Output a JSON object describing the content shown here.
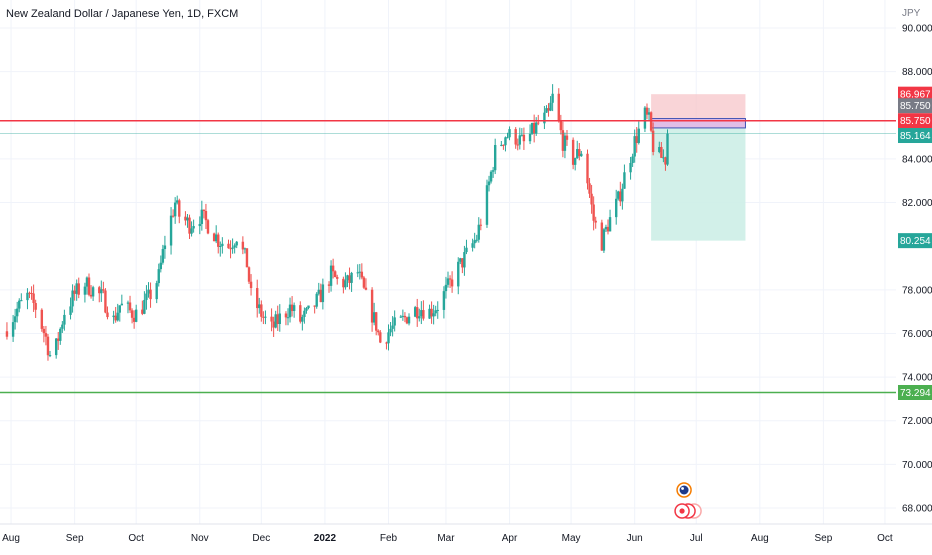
{
  "header": {
    "title": "New Zealand Dollar / Japanese Yen, 1D, FXCM",
    "currency": "JPY"
  },
  "colors": {
    "up": "#26a69a",
    "down": "#ef5350",
    "resistance": "#f23645",
    "support": "#4caf50",
    "current": "#26a69a",
    "stop_zone": "#f7c5ca",
    "target_zone": "#cdeee7",
    "entry_box": "#e1bee7",
    "label_dark": "#787b86"
  },
  "chart_data": {
    "type": "candlestick",
    "ylim": [
      67.5,
      90.5
    ],
    "yticks": [
      "90.000",
      "88.000",
      "84.000",
      "82.000",
      "78.000",
      "76.000",
      "74.000",
      "72.000",
      "70.000",
      "68.000"
    ],
    "ytick_values": [
      90,
      88,
      84,
      82,
      78,
      76,
      74,
      72,
      70,
      68
    ],
    "xticks": [
      {
        "label": "Aug",
        "date": "2021-08-01"
      },
      {
        "label": "Sep",
        "date": "2021-09-01"
      },
      {
        "label": "Oct",
        "date": "2021-10-01"
      },
      {
        "label": "Nov",
        "date": "2021-11-01"
      },
      {
        "label": "Dec",
        "date": "2021-12-01"
      },
      {
        "label": "2022",
        "date": "2022-01-01"
      },
      {
        "label": "Feb",
        "date": "2022-02-01"
      },
      {
        "label": "Mar",
        "date": "2022-03-01"
      },
      {
        "label": "Apr",
        "date": "2022-04-01"
      },
      {
        "label": "May",
        "date": "2022-05-01"
      },
      {
        "label": "Jun",
        "date": "2022-06-01"
      },
      {
        "label": "Jul",
        "date": "2022-07-01"
      },
      {
        "label": "Aug",
        "date": "2022-08-01"
      },
      {
        "label": "Sep",
        "date": "2022-09-01"
      },
      {
        "label": "Oct",
        "date": "2022-10-01"
      }
    ],
    "x_range": [
      "2021-07-31",
      "2022-10-02"
    ],
    "close_path": [
      [
        "2021-07-30",
        76.3
      ],
      [
        "2021-08-04",
        77.1
      ],
      [
        "2021-08-09",
        77.7
      ],
      [
        "2021-08-13",
        77.2
      ],
      [
        "2021-08-18",
        75.8
      ],
      [
        "2021-08-20",
        75.0
      ],
      [
        "2021-08-23",
        75.4
      ],
      [
        "2021-08-27",
        77.0
      ],
      [
        "2021-09-01",
        77.8
      ],
      [
        "2021-09-06",
        78.3
      ],
      [
        "2021-09-10",
        78.0
      ],
      [
        "2021-09-15",
        77.6
      ],
      [
        "2021-09-20",
        76.6
      ],
      [
        "2021-09-23",
        77.3
      ],
      [
        "2021-09-28",
        77.0
      ],
      [
        "2021-10-01",
        76.9
      ],
      [
        "2021-10-07",
        77.6
      ],
      [
        "2021-10-12",
        78.6
      ],
      [
        "2021-10-15",
        80.2
      ],
      [
        "2021-10-20",
        82.0
      ],
      [
        "2021-10-22",
        81.4
      ],
      [
        "2021-10-27",
        81.0
      ],
      [
        "2021-11-01",
        81.4
      ],
      [
        "2021-11-05",
        81.0
      ],
      [
        "2021-11-10",
        80.3
      ],
      [
        "2021-11-15",
        80.0
      ],
      [
        "2021-11-19",
        80.5
      ],
      [
        "2021-11-24",
        79.2
      ],
      [
        "2021-11-26",
        77.7
      ],
      [
        "2021-12-01",
        76.9
      ],
      [
        "2021-12-06",
        76.2
      ],
      [
        "2021-12-10",
        76.7
      ],
      [
        "2021-12-15",
        77.2
      ],
      [
        "2021-12-20",
        76.6
      ],
      [
        "2021-12-24",
        76.9
      ],
      [
        "2021-12-29",
        77.6
      ],
      [
        "2022-01-04",
        78.7
      ],
      [
        "2022-01-07",
        78.4
      ],
      [
        "2022-01-12",
        78.3
      ],
      [
        "2022-01-17",
        78.8
      ],
      [
        "2022-01-21",
        77.6
      ],
      [
        "2022-01-26",
        76.4
      ],
      [
        "2022-01-28",
        75.6
      ],
      [
        "2022-02-02",
        76.2
      ],
      [
        "2022-02-07",
        76.5
      ],
      [
        "2022-02-11",
        76.9
      ],
      [
        "2022-02-16",
        77.2
      ],
      [
        "2022-02-21",
        77.0
      ],
      [
        "2022-02-25",
        77.3
      ],
      [
        "2022-03-02",
        78.1
      ],
      [
        "2022-03-07",
        79.0
      ],
      [
        "2022-03-11",
        79.6
      ],
      [
        "2022-03-16",
        80.4
      ],
      [
        "2022-03-21",
        82.4
      ],
      [
        "2022-03-25",
        84.3
      ],
      [
        "2022-03-30",
        85.1
      ],
      [
        "2022-04-04",
        85.0
      ],
      [
        "2022-04-08",
        84.7
      ],
      [
        "2022-04-12",
        85.2
      ],
      [
        "2022-04-15",
        85.6
      ],
      [
        "2022-04-20",
        86.0
      ],
      [
        "2022-04-22",
        86.8
      ],
      [
        "2022-04-27",
        84.8
      ],
      [
        "2022-05-02",
        84.0
      ],
      [
        "2022-05-06",
        84.4
      ],
      [
        "2022-05-09",
        83.0
      ],
      [
        "2022-05-12",
        81.2
      ],
      [
        "2022-05-16",
        80.2
      ],
      [
        "2022-05-19",
        81.0
      ],
      [
        "2022-05-24",
        82.1
      ],
      [
        "2022-05-27",
        83.2
      ],
      [
        "2022-06-01",
        84.8
      ],
      [
        "2022-06-06",
        86.0
      ],
      [
        "2022-06-08",
        85.7
      ],
      [
        "2022-06-10",
        84.6
      ],
      [
        "2022-06-13",
        84.1
      ],
      [
        "2022-06-16",
        84.0
      ],
      [
        "2022-06-17",
        85.16
      ]
    ],
    "levels": {
      "stop": 86.967,
      "resistance": 85.75,
      "entry": 85.75,
      "current": 85.164,
      "target": 80.254,
      "support": 73.294
    },
    "level_labels": {
      "stop": "86.967",
      "resistance": "85.750",
      "entry": "85.750",
      "current": "85.164",
      "target": "80.254",
      "support": "73.294"
    },
    "position": {
      "type": "short",
      "start": "2022-06-09",
      "end": "2022-07-25",
      "entry": 85.75,
      "stop": 86.967,
      "target": 80.254
    },
    "entry_box": {
      "start": "2022-06-09",
      "end": "2022-07-25",
      "top": 85.85,
      "bottom": 85.42
    },
    "events_date": "2022-06-28"
  }
}
